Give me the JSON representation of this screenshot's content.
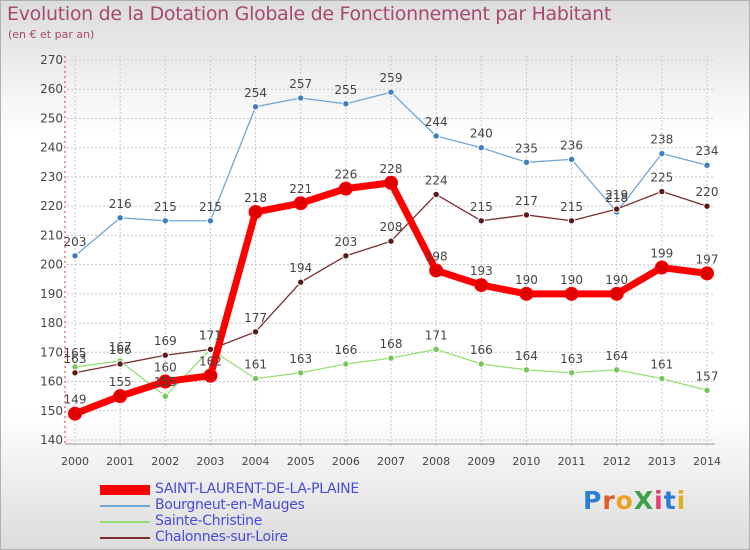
{
  "title": "Evolution de la Dotation Globale de Fonctionnement par Habitant",
  "subtitle": "(en € et par an)",
  "logo": {
    "text": "ProXiti",
    "letters": [
      {
        "ch": "P",
        "color": "#2a7fd4"
      },
      {
        "ch": "r",
        "color": "#e05a2a"
      },
      {
        "ch": "o",
        "color": "#f0a020"
      },
      {
        "ch": "X",
        "color": "#3aa04a"
      },
      {
        "ch": "i",
        "color": "#e04070"
      },
      {
        "ch": "t",
        "color": "#2a7fd4"
      },
      {
        "ch": "i",
        "color": "#e0b020"
      }
    ]
  },
  "chart_data": {
    "type": "line",
    "title": "Evolution de la Dotation Globale de Fonctionnement par Habitant",
    "ylabel": "(en € et par an)",
    "categories": [
      "2000",
      "2001",
      "2002",
      "2003",
      "2004",
      "2005",
      "2006",
      "2007",
      "2008",
      "2009",
      "2010",
      "2011",
      "2012",
      "2013",
      "2014"
    ],
    "ylim": [
      140,
      270
    ],
    "yticks": [
      140,
      150,
      160,
      170,
      180,
      190,
      200,
      210,
      220,
      230,
      240,
      250,
      260,
      270
    ],
    "grid": true,
    "series": [
      {
        "name": "SAINT-LAURENT-DE-LA-PLAINE",
        "color": "#ff0000",
        "marker": "#e00000",
        "emphasis": true,
        "values": [
          149,
          155,
          160,
          162,
          218,
          221,
          226,
          228,
          198,
          193,
          190,
          190,
          190,
          199,
          197
        ]
      },
      {
        "name": "Bourgneut-en-Mauges",
        "color": "#6fa6d6",
        "marker": "#3d7fc0",
        "values": [
          203,
          216,
          215,
          215,
          254,
          257,
          255,
          259,
          244,
          240,
          235,
          236,
          218,
          238,
          234
        ]
      },
      {
        "name": "Sainte-Christine",
        "color": "#99dd77",
        "marker": "#77c55a",
        "values": [
          165,
          167,
          155,
          171,
          161,
          163,
          166,
          168,
          171,
          166,
          164,
          163,
          164,
          161,
          157
        ]
      },
      {
        "name": "Chalonnes-sur-Loire",
        "color": "#7a2e2e",
        "marker": "#5a1a1a",
        "values": [
          163,
          166,
          169,
          171,
          177,
          194,
          203,
          208,
          224,
          215,
          217,
          215,
          219,
          225,
          220
        ]
      }
    ]
  }
}
